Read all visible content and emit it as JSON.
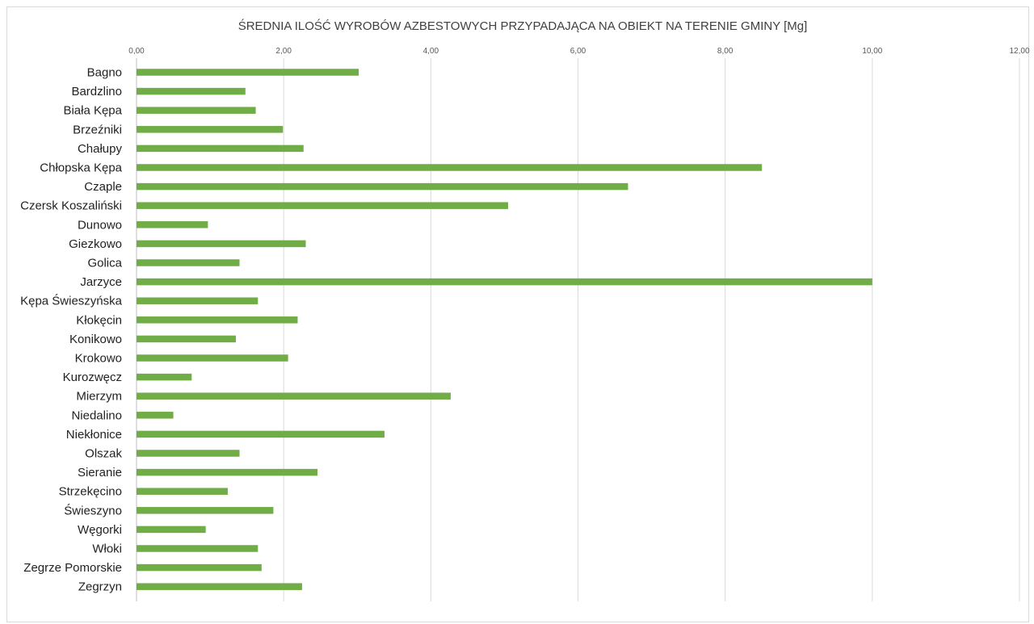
{
  "chart_data": {
    "type": "bar",
    "orientation": "horizontal",
    "title": "ŚREDNIA ILOŚĆ WYROBÓW AZBESTOWYCH PRZYPADAJĄCA NA OBIEKT NA TERENIE GMINY [Mg]",
    "xlabel": "",
    "ylabel": "",
    "xlim": [
      0,
      12
    ],
    "x_ticks": [
      "0,00",
      "2,00",
      "4,00",
      "6,00",
      "8,00",
      "10,00",
      "12,00"
    ],
    "x_axis_position": "top",
    "grid": "vertical",
    "legend": "none",
    "bar_color": "#70ad47",
    "categories": [
      "Bagno",
      "Bardzlino",
      "Biała Kępa",
      "Brzeźniki",
      "Chałupy",
      "Chłopska Kępa",
      "Czaple",
      "Czersk Koszaliński",
      "Dunowo",
      "Giezkowo",
      "Golica",
      "Jarzyce",
      "Kępa Świeszyńska",
      "Kłokęcin",
      "Konikowo",
      "Krokowo",
      "Kurozwęcz",
      "Mierzym",
      "Niedalino",
      "Niekłonice",
      "Olszak",
      "Sieranie",
      "Strzekęcino",
      "Świeszyno",
      "Węgorki",
      "Włoki",
      "Zegrze Pomorskie",
      "Zegrzyn"
    ],
    "values": [
      3.02,
      1.48,
      1.62,
      1.99,
      2.27,
      8.5,
      6.68,
      5.05,
      0.97,
      2.3,
      1.4,
      10.0,
      1.65,
      2.19,
      1.35,
      2.06,
      0.75,
      4.27,
      0.5,
      3.37,
      1.4,
      2.46,
      1.24,
      1.86,
      0.94,
      1.65,
      1.7,
      2.25
    ]
  }
}
